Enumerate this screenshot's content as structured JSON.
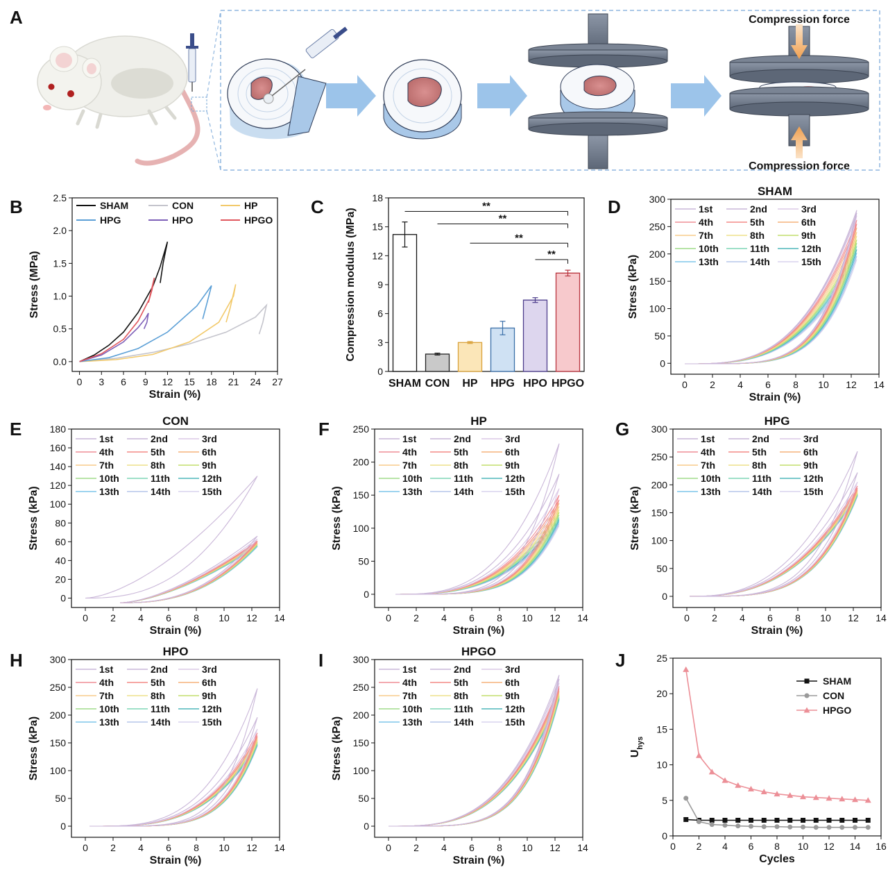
{
  "panel_a": {
    "label": "A",
    "force_top": "Compression force",
    "force_bottom": "Compression force"
  },
  "colors": {
    "SHAM": "#111111",
    "CON": "#c4c4cc",
    "HP": "#f2c96a",
    "HPG": "#5b9fd6",
    "HPO": "#7d5fb8",
    "HPGO": "#e0575e",
    "cycles": [
      "#c9b6d8",
      "#c9b6d8",
      "#dcc8e6",
      "#ef8d96",
      "#f48a86",
      "#f5b27c",
      "#f8cc8a",
      "#ede08a",
      "#c2de6c",
      "#9fdc8a",
      "#7fd6b6",
      "#4fb7ba",
      "#7ec6ea",
      "#b5c6ea",
      "#d8d4ee"
    ]
  },
  "chart_data": [
    {
      "id": "B",
      "label": "B",
      "type": "line",
      "xlabel": "Strain (%)",
      "ylabel": "Stress (MPa)",
      "xlim": [
        -1,
        27
      ],
      "ylim": [
        -0.15,
        2.5
      ],
      "xticks": [
        "0",
        "3",
        "6",
        "9",
        "12",
        "15",
        "18",
        "21",
        "24",
        "27"
      ],
      "yticks": [
        "0.0",
        "0.5",
        "1.0",
        "1.5",
        "2.0",
        "2.5"
      ],
      "legend": [
        "SHAM",
        "CON",
        "HP",
        "HPG",
        "HPO",
        "HPGO"
      ],
      "series": [
        {
          "name": "SHAM",
          "x": [
            0,
            2,
            4,
            6,
            8,
            10,
            11,
            12,
            11.4,
            11.0
          ],
          "y": [
            0,
            0.1,
            0.25,
            0.45,
            0.75,
            1.15,
            1.45,
            1.83,
            1.5,
            1.2
          ]
        },
        {
          "name": "CON",
          "x": [
            0,
            5,
            10,
            15,
            20,
            24,
            25.5,
            25,
            24.5
          ],
          "y": [
            0,
            0.05,
            0.14,
            0.27,
            0.45,
            0.68,
            0.86,
            0.6,
            0.42
          ]
        },
        {
          "name": "HP",
          "x": [
            0,
            5,
            10,
            15,
            19,
            21,
            21.3,
            20.5,
            20
          ],
          "y": [
            0,
            0.03,
            0.11,
            0.3,
            0.6,
            1.0,
            1.18,
            0.8,
            0.6
          ]
        },
        {
          "name": "HPG",
          "x": [
            0,
            4,
            8,
            12,
            16,
            18,
            17.4,
            16.8
          ],
          "y": [
            0,
            0.06,
            0.2,
            0.45,
            0.85,
            1.16,
            0.9,
            0.65
          ]
        },
        {
          "name": "HPO",
          "x": [
            0,
            3,
            6,
            8,
            9,
            9.4,
            9.2,
            8.8
          ],
          "y": [
            0,
            0.1,
            0.3,
            0.52,
            0.66,
            0.74,
            0.6,
            0.5
          ]
        },
        {
          "name": "HPGO",
          "x": [
            0,
            3,
            6,
            8,
            9.5,
            10.2,
            9.9,
            9.4
          ],
          "y": [
            0,
            0.12,
            0.34,
            0.62,
            0.95,
            1.28,
            1.1,
            0.9
          ]
        }
      ]
    },
    {
      "id": "C",
      "label": "C",
      "type": "bar",
      "xlabel": "",
      "ylabel": "Compression modulus (MPa)",
      "ylim": [
        0,
        18
      ],
      "yticks": [
        "0",
        "3",
        "6",
        "9",
        "12",
        "15",
        "18"
      ],
      "categories": [
        "SHAM",
        "CON",
        "HP",
        "HPG",
        "HPO",
        "HPGO"
      ],
      "values": [
        14.2,
        1.8,
        3.0,
        4.5,
        7.4,
        10.2
      ],
      "errors": [
        1.3,
        0.1,
        0.1,
        0.7,
        0.25,
        0.3
      ],
      "significance": [
        {
          "from": 0,
          "to": 5,
          "label": "**"
        },
        {
          "from": 1,
          "to": 5,
          "label": "**"
        },
        {
          "from": 2,
          "to": 5,
          "label": "**"
        },
        {
          "from": 4,
          "to": 5,
          "label": "**"
        }
      ]
    },
    {
      "id": "D",
      "label": "D",
      "title": "SHAM",
      "type": "line",
      "xlabel": "Strain (%)",
      "ylabel": "Stress (kPa)",
      "xlim": [
        -1,
        14
      ],
      "ylim": [
        -20,
        300
      ],
      "xticks": [
        "0",
        "2",
        "4",
        "6",
        "8",
        "10",
        "12",
        "14"
      ],
      "yticks": [
        "0",
        "50",
        "100",
        "150",
        "200",
        "250",
        "300"
      ],
      "legend": [
        "1st",
        "2nd",
        "3rd",
        "4th",
        "5th",
        "6th",
        "7th",
        "8th",
        "9th",
        "10th",
        "11th",
        "12th",
        "13th",
        "14th",
        "15th"
      ],
      "curve": {
        "x0": 0,
        "x1": 12.4,
        "ymax": [
          280,
          275,
          270,
          262,
          255,
          248,
          240,
          233,
          226,
          220,
          214,
          208,
          202,
          196,
          190
        ],
        "start_y": -1
      }
    },
    {
      "id": "E",
      "label": "E",
      "title": "CON",
      "type": "line",
      "xlabel": "Strain (%)",
      "ylabel": "Stress (kPa)",
      "xlim": [
        -1,
        14
      ],
      "ylim": [
        -10,
        180
      ],
      "xticks": [
        "0",
        "2",
        "4",
        "6",
        "8",
        "10",
        "12",
        "14"
      ],
      "yticks": [
        "0",
        "20",
        "40",
        "60",
        "80",
        "100",
        "120",
        "140",
        "160",
        "180"
      ],
      "legend": [
        "1st",
        "2nd",
        "3rd",
        "4th",
        "5th",
        "6th",
        "7th",
        "8th",
        "9th",
        "10th",
        "11th",
        "12th",
        "13th",
        "14th",
        "15th"
      ],
      "curve": {
        "x0": 2.5,
        "x1": 12.4,
        "ymax": [
          130,
          66,
          63,
          61,
          60,
          59,
          58,
          58,
          57,
          57,
          56,
          56,
          55,
          55,
          55
        ],
        "start_y": -5,
        "first_x0": 0,
        "first_start_y": 0
      }
    },
    {
      "id": "F",
      "label": "F",
      "title": "HP",
      "type": "line",
      "xlabel": "Strain (%)",
      "ylabel": "Stress (kPa)",
      "xlim": [
        -1,
        14
      ],
      "ylim": [
        -20,
        250
      ],
      "xticks": [
        "0",
        "2",
        "4",
        "6",
        "8",
        "10",
        "12",
        "14"
      ],
      "yticks": [
        "0",
        "50",
        "100",
        "150",
        "200",
        "250"
      ],
      "legend": [
        "1st",
        "2nd",
        "3rd",
        "4th",
        "5th",
        "6th",
        "7th",
        "8th",
        "9th",
        "10th",
        "11th",
        "12th",
        "13th",
        "14th",
        "15th"
      ],
      "curve": {
        "x0": 0.5,
        "x1": 12.3,
        "ymax": [
          228,
          182,
          160,
          150,
          143,
          138,
          133,
          128,
          124,
          120,
          116,
          113,
          110,
          107,
          104
        ],
        "start_y": 0
      }
    },
    {
      "id": "G",
      "label": "G",
      "title": "HPG",
      "type": "line",
      "xlabel": "Strain (%)",
      "ylabel": "Stress (kPa)",
      "xlim": [
        -1,
        14
      ],
      "ylim": [
        -20,
        300
      ],
      "xticks": [
        "0",
        "2",
        "4",
        "6",
        "8",
        "10",
        "12",
        "14"
      ],
      "yticks": [
        "0",
        "50",
        "100",
        "150",
        "200",
        "250",
        "300"
      ],
      "legend": [
        "1st",
        "2nd",
        "3rd",
        "4th",
        "5th",
        "6th",
        "7th",
        "8th",
        "9th",
        "10th",
        "11th",
        "12th",
        "13th",
        "14th",
        "15th"
      ],
      "curve": {
        "x0": 0.2,
        "x1": 12.3,
        "ymax": [
          260,
          222,
          205,
          198,
          194,
          191,
          189,
          187,
          185,
          184,
          183,
          182,
          181,
          180,
          179
        ],
        "start_y": 0
      }
    },
    {
      "id": "H",
      "label": "H",
      "title": "HPO",
      "type": "line",
      "xlabel": "Strain (%)",
      "ylabel": "Stress (kPa)",
      "xlim": [
        -1,
        14
      ],
      "ylim": [
        -20,
        300
      ],
      "xticks": [
        "0",
        "2",
        "4",
        "6",
        "8",
        "10",
        "12",
        "14"
      ],
      "yticks": [
        "0",
        "50",
        "100",
        "150",
        "200",
        "250",
        "300"
      ],
      "legend": [
        "1st",
        "2nd",
        "3rd",
        "4th",
        "5th",
        "6th",
        "7th",
        "8th",
        "9th",
        "10th",
        "11th",
        "12th",
        "13th",
        "14th",
        "15th"
      ],
      "curve": {
        "x0": 0.3,
        "x1": 12.4,
        "ymax": [
          248,
          196,
          175,
          168,
          163,
          160,
          157,
          155,
          153,
          151,
          149,
          147,
          146,
          145,
          144
        ],
        "start_y": 0
      }
    },
    {
      "id": "I",
      "label": "I",
      "title": "HPGO",
      "type": "line",
      "xlabel": "Strain (%)",
      "ylabel": "Stress (kPa)",
      "xlim": [
        -1,
        14
      ],
      "ylim": [
        -20,
        300
      ],
      "xticks": [
        "0",
        "2",
        "4",
        "6",
        "8",
        "10",
        "12",
        "14"
      ],
      "yticks": [
        "0",
        "50",
        "100",
        "150",
        "200",
        "250",
        "300"
      ],
      "legend": [
        "1st",
        "2nd",
        "3rd",
        "4th",
        "5th",
        "6th",
        "7th",
        "8th",
        "9th",
        "10th",
        "11th",
        "12th",
        "13th",
        "14th",
        "15th"
      ],
      "curve": {
        "x0": 0,
        "x1": 12.3,
        "ymax": [
          272,
          265,
          258,
          252,
          248,
          244,
          241,
          238,
          236,
          234,
          232,
          230,
          229,
          228,
          227
        ],
        "start_y": 0
      }
    },
    {
      "id": "J",
      "label": "J",
      "type": "line",
      "xlabel": "Cycles",
      "ylabel": "U",
      "ylabel_sub": "hys",
      "xlim": [
        0,
        16
      ],
      "ylim": [
        0,
        25
      ],
      "xticks": [
        "0",
        "2",
        "4",
        "6",
        "8",
        "10",
        "12",
        "14",
        "16"
      ],
      "yticks": [
        "0",
        "5",
        "10",
        "15",
        "20",
        "25"
      ],
      "legend": [
        "SHAM",
        "CON",
        "HPGO"
      ],
      "x": [
        1,
        2,
        3,
        4,
        5,
        6,
        7,
        8,
        9,
        10,
        11,
        12,
        13,
        14,
        15
      ],
      "series": [
        {
          "name": "SHAM",
          "marker": "square",
          "values": [
            2.3,
            2.2,
            2.2,
            2.2,
            2.2,
            2.2,
            2.2,
            2.2,
            2.2,
            2.2,
            2.2,
            2.2,
            2.2,
            2.2,
            2.2
          ]
        },
        {
          "name": "CON",
          "marker": "circle",
          "values": [
            5.3,
            2.0,
            1.6,
            1.5,
            1.4,
            1.35,
            1.3,
            1.3,
            1.25,
            1.25,
            1.2,
            1.2,
            1.2,
            1.2,
            1.2
          ]
        },
        {
          "name": "HPGO",
          "marker": "triangle",
          "values": [
            23.4,
            11.3,
            9.0,
            7.8,
            7.1,
            6.6,
            6.2,
            5.9,
            5.7,
            5.5,
            5.4,
            5.3,
            5.2,
            5.1,
            5.0
          ]
        }
      ]
    }
  ]
}
